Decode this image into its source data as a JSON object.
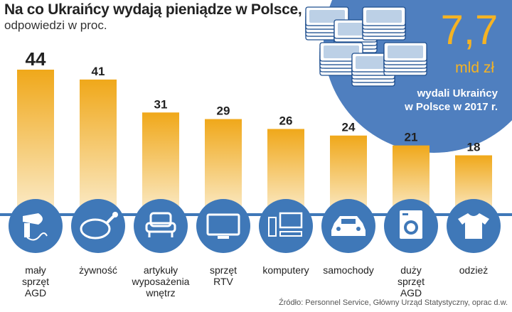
{
  "header": {
    "title": "Na co Ukraińcy wydają pieniądze w Polsce,",
    "subtitle": "odpowiedzi w proc."
  },
  "callout": {
    "value": "7,7",
    "unit": "mld zł",
    "text_line1": "wydali Ukraińcy",
    "text_line2": "w Polsce w 2017 r.",
    "circle_color": "#4f7fbf",
    "illustration": "stacks-of-banknotes"
  },
  "source": "Źródło: Personnel Service, Główny Urząd Statystyczny, oprac d.w.",
  "colors": {
    "bar_top": "#f0a81a",
    "bar_bottom": "#fbeccb",
    "icon_circle": "#3f78b8",
    "icon_glyph": "#ffffff",
    "baseline": "#3f78b8"
  },
  "chart_data": {
    "type": "bar",
    "categories": [
      "mały sprzęt AGD",
      "żywność",
      "artykuły wyposażenia wnętrz",
      "sprzęt RTV",
      "komputery",
      "samochody",
      "duży sprzęt AGD",
      "odzież"
    ],
    "category_lines": [
      [
        "mały",
        "sprzęt",
        "AGD"
      ],
      [
        "żywność"
      ],
      [
        "artykuły",
        "wyposażenia",
        "wnętrz"
      ],
      [
        "sprzęt",
        "RTV"
      ],
      [
        "komputery"
      ],
      [
        "samochody"
      ],
      [
        "duży",
        "sprzęt",
        "AGD"
      ],
      [
        "odzież"
      ]
    ],
    "icons": [
      "hair-dryer-icon",
      "roast-chicken-icon",
      "armchair-icon",
      "tv-icon",
      "computer-icon",
      "car-icon",
      "washing-machine-icon",
      "tshirt-icon"
    ],
    "values": [
      44,
      41,
      31,
      29,
      26,
      24,
      21,
      18
    ],
    "unit": "%",
    "ylim": [
      0,
      44
    ]
  }
}
